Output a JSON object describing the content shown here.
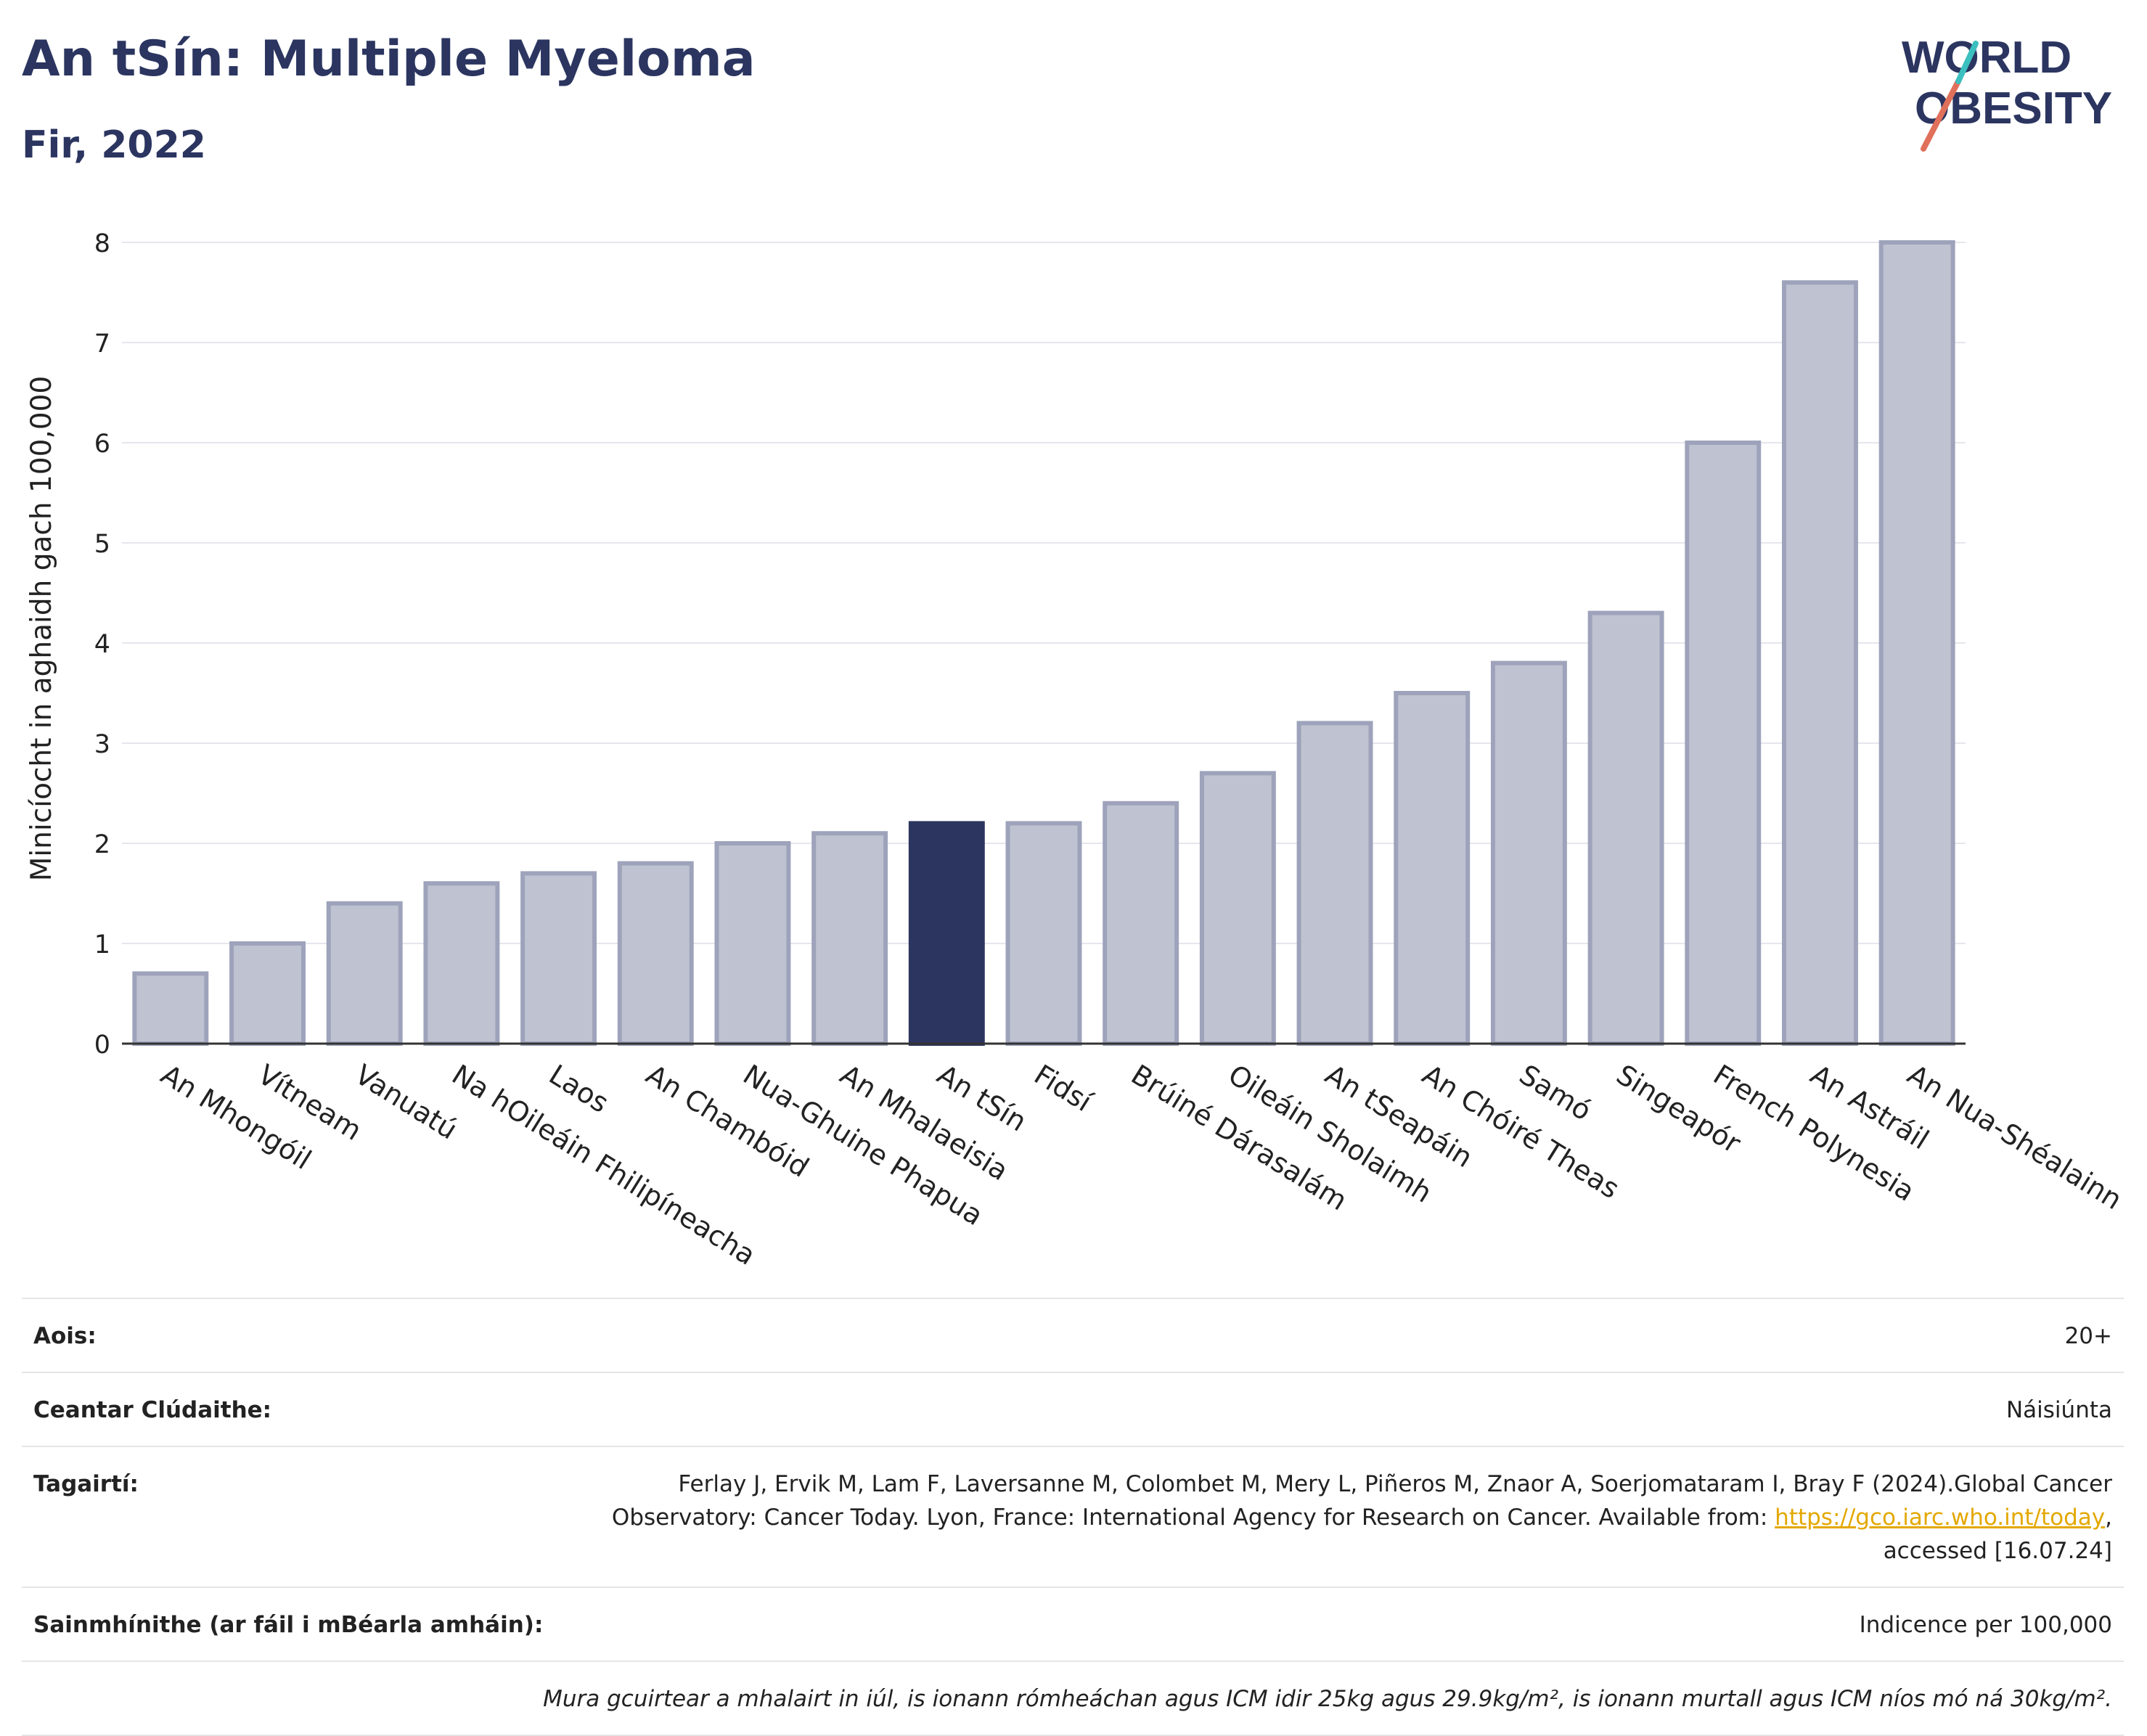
{
  "header": {
    "title": "An tSín: Multiple Myeloma",
    "subtitle": "Fir, 2022",
    "logo_text_line1": "WORLD",
    "logo_text_line2": "OBESITY"
  },
  "colors": {
    "highlight": "#2b3560",
    "bar_fill": "#bfc2d0",
    "bar_stroke": "#9ea3bb",
    "title": "#2b3560",
    "link": "#e3a800"
  },
  "chart_data": {
    "type": "bar",
    "ylabel": "Minicíocht in aghaidh gach 100,000",
    "xlabel": "",
    "ylim": [
      0,
      8
    ],
    "yticks": [
      0,
      1,
      2,
      3,
      4,
      5,
      6,
      7,
      8
    ],
    "grid": true,
    "highlight_category": "An tSín",
    "categories": [
      "An Mhongóil",
      "Vítneam",
      "Vanuatú",
      "Na hOileáin Fhilipíneacha",
      "Laos",
      "An Chambóid",
      "Nua-Ghuine Phapua",
      "An Mhalaeisia",
      "An tSín",
      "Fidsí",
      "Brúiné Dárasalám",
      "Oileáin Sholaimh",
      "An tSeapáin",
      "An Chóiré Theas",
      "Samó",
      "Singeapór",
      "French Polynesia",
      "An Astráil",
      "An Nua-Shéalainn"
    ],
    "values": [
      0.7,
      1.0,
      1.4,
      1.6,
      1.7,
      1.8,
      2.0,
      2.1,
      2.2,
      2.2,
      2.4,
      2.7,
      3.2,
      3.5,
      3.8,
      4.3,
      6.0,
      7.6,
      8.0
    ]
  },
  "meta": {
    "age_label": "Aois:",
    "age_value": "20+",
    "area_label": "Ceantar Clúdaithe:",
    "area_value": "Náisiúnta",
    "refs_label": "Tagairtí:",
    "refs_line1": "Ferlay J, Ervik M, Lam F, Laversanne M, Colombet M, Mery L, Piñeros M, Znaor A, Soerjomataram I, Bray F (2024).Global Cancer",
    "refs_line2_prefix": "Observatory: Cancer Today. Lyon, France: International Agency for Research on Cancer. Available from: ",
    "refs_link": "https://gco.iarc.who.int/today",
    "refs_line2_suffix": ",",
    "refs_line3": "accessed [16.07.24]",
    "defs_label": "Sainmhínithe (ar fáil i mBéarla amháin):",
    "defs_value": "Indicence per 100,000",
    "note": "Mura gcuirtear a mhalairt in iúl, is ionann rómheáchan agus ICM idir 25kg agus 29.9kg/m², is ionann murtall agus ICM níos mó ná 30kg/m²."
  }
}
